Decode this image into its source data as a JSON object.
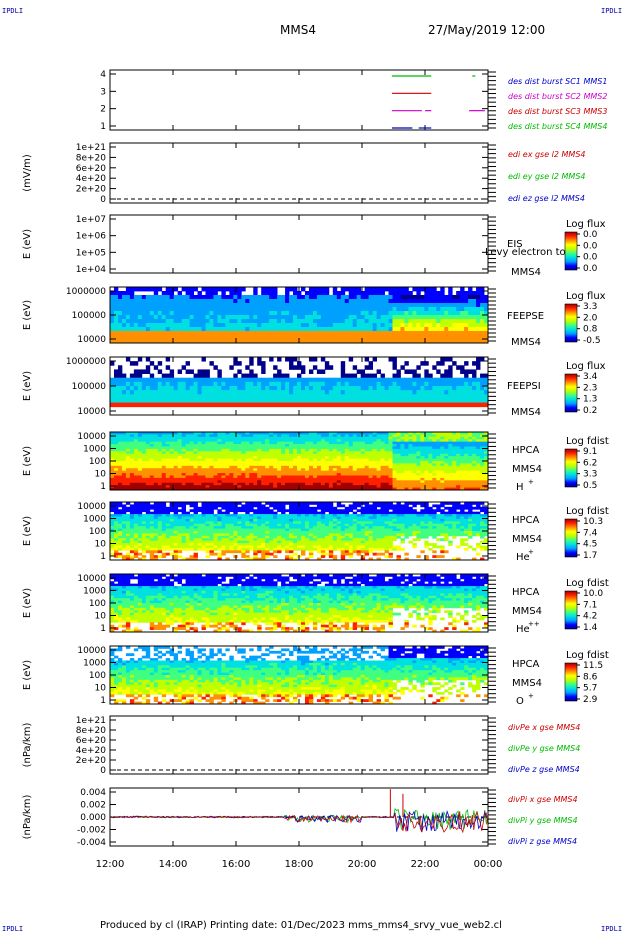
{
  "header": {
    "title": "MMS4",
    "datetime": "27/May/2019 12:00",
    "corner_tag": "IPDLI"
  },
  "footer": {
    "text": "Produced by cl (IRAP)   Printing date: 01/Dec/2023   mms_mms4_srvy_vue_web2.cl"
  },
  "colors": {
    "cmap": [
      "#00008b",
      "#0000ff",
      "#00a0ff",
      "#00e0e0",
      "#40ff80",
      "#c0ff00",
      "#ffff00",
      "#ff9000",
      "#ff2000",
      "#a00000"
    ]
  },
  "chart_data": [
    {
      "type": "line",
      "ylabel": "",
      "yticks": [
        "4",
        "3",
        "2",
        "1"
      ],
      "legend": [
        {
          "text": "des dist burst SC1 MMS1",
          "color": "#0000cc"
        },
        {
          "text": "des dist burst SC2 MMS2",
          "color": "#cc00cc"
        },
        {
          "text": "des dist burst SC3 MMS3",
          "color": "#cc0000"
        },
        {
          "text": "des dist burst SC4 MMS4",
          "color": "#00bb00"
        }
      ],
      "series": [
        {
          "level": 4,
          "color": "#00bb00",
          "segments": [
            [
              20.95,
              22.2
            ],
            [
              23.5,
              23.6
            ]
          ]
        },
        {
          "level": 3,
          "color": "#cc0000",
          "segments": [
            [
              20.95,
              22.2
            ]
          ]
        },
        {
          "level": 2,
          "color": "#cc00cc",
          "segments": [
            [
              20.95,
              21.9
            ],
            [
              22.0,
              22.2
            ],
            [
              23.4,
              23.9
            ]
          ]
        },
        {
          "level": 1,
          "color": "#0000cc",
          "segments": [
            [
              20.95,
              21.6
            ],
            [
              21.8,
              22.2
            ]
          ]
        }
      ]
    },
    {
      "type": "line",
      "ylabel": "(mV/m)",
      "yticks": [
        "1e+21",
        "8e+20",
        "6e+20",
        "4e+20",
        "2e+20",
        "0"
      ],
      "legend": [
        {
          "text": "edi ex gse l2 MMS4",
          "color": "#cc0000"
        },
        {
          "text": "edi ey gse l2 MMS4",
          "color": "#00bb00"
        },
        {
          "text": "edi ez gse l2 MMS4",
          "color": "#0000cc"
        }
      ]
    },
    {
      "type": "heatmap",
      "ylabel": "E (eV)",
      "yticks": [
        "1e+07",
        "1e+06",
        "1e+05",
        "1e+04"
      ],
      "labels": [
        "EIS",
        "MMS4"
      ],
      "overlay": "Levy electron to",
      "cbar_title": "Log flux",
      "cbar_ticks": [
        "0.0",
        "0.0",
        "0.0",
        "0.0"
      ]
    },
    {
      "type": "heatmap",
      "ylabel": "E (eV)",
      "yticks": [
        "1000000",
        "100000",
        "10000"
      ],
      "labels": [
        "FEEPSE",
        "MMS4"
      ],
      "cbar_title": "Log flux",
      "cbar_ticks": [
        "3.3",
        "2.0",
        "0.8",
        "-0.5"
      ]
    },
    {
      "type": "heatmap",
      "ylabel": "E (eV)",
      "yticks": [
        "1000000",
        "100000",
        "10000"
      ],
      "labels": [
        "FEEPSI",
        "MMS4"
      ],
      "cbar_title": "Log flux",
      "cbar_ticks": [
        "3.4",
        "2.3",
        "1.3",
        "0.2"
      ]
    },
    {
      "type": "heatmap",
      "ylabel": "E (eV)",
      "yticks": [
        "10000",
        "1000",
        "100",
        "10",
        "1"
      ],
      "labels": [
        "HPCA",
        "MMS4",
        "H",
        "+"
      ],
      "cbar_title": "Log fdist",
      "cbar_ticks": [
        "9.1",
        "6.2",
        "3.3",
        "0.5"
      ]
    },
    {
      "type": "heatmap",
      "ylabel": "E (eV)",
      "yticks": [
        "10000",
        "1000",
        "100",
        "10",
        "1"
      ],
      "labels": [
        "HPCA",
        "MMS4",
        "He",
        "+"
      ],
      "cbar_title": "Log fdist",
      "cbar_ticks": [
        "10.3",
        "7.4",
        "4.5",
        "1.7"
      ]
    },
    {
      "type": "heatmap",
      "ylabel": "E (eV)",
      "yticks": [
        "10000",
        "1000",
        "100",
        "10",
        "1"
      ],
      "labels": [
        "HPCA",
        "MMS4",
        "He",
        "++"
      ],
      "cbar_title": "Log fdist",
      "cbar_ticks": [
        "10.0",
        "7.1",
        "4.2",
        "1.4"
      ]
    },
    {
      "type": "heatmap",
      "ylabel": "E (eV)",
      "yticks": [
        "10000",
        "1000",
        "100",
        "10",
        "1"
      ],
      "labels": [
        "HPCA",
        "MMS4",
        "O",
        "+"
      ],
      "cbar_title": "Log fdist",
      "cbar_ticks": [
        "11.5",
        "8.6",
        "5.7",
        "2.9"
      ]
    },
    {
      "type": "line",
      "ylabel": "(nPa/km)",
      "yticks": [
        "1e+21",
        "8e+20",
        "6e+20",
        "4e+20",
        "2e+20",
        "0"
      ],
      "legend": [
        {
          "text": "divPe x gse MMS4",
          "color": "#cc0000"
        },
        {
          "text": "divPe y gse MMS4",
          "color": "#00bb00"
        },
        {
          "text": "divPe z gse MMS4",
          "color": "#0000cc"
        }
      ]
    },
    {
      "type": "line",
      "ylabel": "(nPa/km)",
      "yticks": [
        "0.004",
        "0.002",
        "0.000",
        "-0.002",
        "-0.004"
      ],
      "ylim": [
        -0.005,
        0.005
      ],
      "legend": [
        {
          "text": "divPi x gse MMS4",
          "color": "#cc0000"
        },
        {
          "text": "divPi y gse MMS4",
          "color": "#00bb00"
        },
        {
          "text": "divPi z gse MMS4",
          "color": "#0000cc"
        }
      ]
    }
  ],
  "xaxis": {
    "ticks": [
      "12:00",
      "14:00",
      "16:00",
      "18:00",
      "20:00",
      "22:00",
      "00:00"
    ],
    "xlim": [
      12,
      24
    ]
  }
}
